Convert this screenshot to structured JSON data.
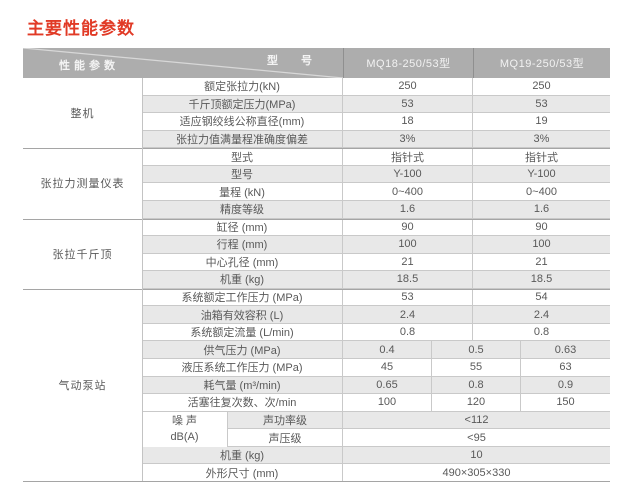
{
  "page_title": "主要性能参数",
  "colors": {
    "title_red": "#e13a26",
    "header_bg": "#adadad",
    "header_text": "#f2f2f2",
    "stripe_bg": "#e8e8e8",
    "row_border": "#c9c9c9",
    "body_text": "#595959"
  },
  "table": {
    "header": {
      "corner_top": "型 号",
      "corner_bottom": "性能参数",
      "models": [
        "MQ18-250/53型",
        "MQ19-250/53型"
      ]
    },
    "groups": [
      {
        "label": "整机",
        "row_count": 4
      },
      {
        "label": "张拉力测量仪表",
        "row_count": 4
      },
      {
        "label": "张拉千斤顶",
        "row_count": 4
      },
      {
        "label": "气动泵站",
        "row_count": 11
      }
    ],
    "noise_cell": {
      "line1": "噪 声",
      "line2": "dB(A)"
    },
    "rows": [
      {
        "label": "额定张拉力(kN)",
        "span": "two",
        "values": [
          "250",
          "250"
        ]
      },
      {
        "label": "千斤顶额定压力(MPa)",
        "span": "two",
        "values": [
          "53",
          "53"
        ]
      },
      {
        "label": "适应钢绞线公称直径(mm)",
        "span": "two",
        "values": [
          "18",
          "19"
        ]
      },
      {
        "label": "张拉力值满量程准确度偏差",
        "span": "two",
        "values": [
          "3%",
          "3%"
        ]
      },
      {
        "label": "型式",
        "span": "two",
        "values": [
          "指针式",
          "指针式"
        ]
      },
      {
        "label": "型号",
        "span": "two",
        "values": [
          "Y-100",
          "Y-100"
        ]
      },
      {
        "label": "量程 (kN)",
        "span": "two",
        "values": [
          "0~400",
          "0~400"
        ]
      },
      {
        "label": "精度等级",
        "span": "two",
        "values": [
          "1.6",
          "1.6"
        ]
      },
      {
        "label": "缸径 (mm)",
        "span": "two",
        "values": [
          "90",
          "90"
        ]
      },
      {
        "label": "行程 (mm)",
        "span": "two",
        "values": [
          "100",
          "100"
        ]
      },
      {
        "label": "中心孔径 (mm)",
        "span": "two",
        "values": [
          "21",
          "21"
        ]
      },
      {
        "label": "机重 (kg)",
        "span": "two",
        "values": [
          "18.5",
          "18.5"
        ]
      },
      {
        "label": "系统额定工作压力 (MPa)",
        "span": "two",
        "values": [
          "53",
          "54"
        ]
      },
      {
        "label": "油箱有效容积 (L)",
        "span": "two",
        "values": [
          "2.4",
          "2.4"
        ]
      },
      {
        "label": "系统额定流量 (L/min)",
        "span": "two",
        "values": [
          "0.8",
          "0.8"
        ]
      },
      {
        "label": "供气压力 (MPa)",
        "span": "three",
        "values": [
          "0.4",
          "0.5",
          "0.63"
        ]
      },
      {
        "label": "液压系统工作压力 (MPa)",
        "span": "three",
        "values": [
          "45",
          "55",
          "63"
        ]
      },
      {
        "label": "耗气量 (m³/min)",
        "span": "three",
        "values": [
          "0.65",
          "0.8",
          "0.9"
        ]
      },
      {
        "label": "活塞往复次数、次/min",
        "span": "three",
        "values": [
          "100",
          "120",
          "150"
        ]
      },
      {
        "label": "声功率级",
        "span": "full",
        "noise": true,
        "values": [
          "<112"
        ]
      },
      {
        "label": "声压级",
        "span": "full",
        "noise": true,
        "values": [
          "<95"
        ]
      },
      {
        "label": "机重 (kg)",
        "span": "full",
        "values": [
          "10"
        ]
      },
      {
        "label": "外形尺寸 (mm)",
        "span": "full",
        "values": [
          "490×305×330"
        ]
      }
    ]
  }
}
